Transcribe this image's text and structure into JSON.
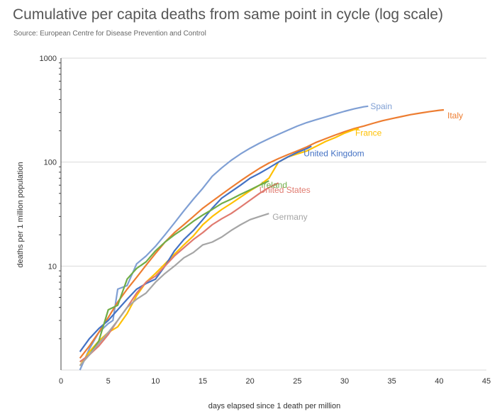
{
  "chart_data": {
    "type": "line",
    "title": "Cumulative per capita deaths from same point in cycle (log scale)",
    "subtitle": "Source: European Centre for Disease Prevention and Control",
    "xlabel": "days elapsed since 1 death per million",
    "ylabel": "deaths per 1 million population",
    "xlim": [
      0,
      45
    ],
    "ylim": [
      1,
      1000
    ],
    "yscale": "log",
    "x_ticks": [
      0,
      5,
      10,
      15,
      20,
      25,
      30,
      35,
      40,
      45
    ],
    "y_ticks": [
      1,
      10,
      100,
      1000
    ],
    "y_tick_labels": [
      "",
      "10",
      "100",
      "1000"
    ],
    "grid": true,
    "legend": "direct labels at line ends",
    "series": [
      {
        "name": "Spain",
        "color": "#7f9fd4",
        "points": [
          [
            2,
            1.0
          ],
          [
            3,
            1.6
          ],
          [
            4,
            2.3
          ],
          [
            5,
            2.8
          ],
          [
            5.5,
            3.0
          ],
          [
            6,
            6.0
          ],
          [
            7,
            6.5
          ],
          [
            8,
            10.5
          ],
          [
            9,
            12.5
          ],
          [
            10,
            15.5
          ],
          [
            11,
            20
          ],
          [
            12,
            26
          ],
          [
            13,
            34
          ],
          [
            14,
            44
          ],
          [
            15,
            56
          ],
          [
            16,
            73
          ],
          [
            17,
            88
          ],
          [
            18,
            104
          ],
          [
            19,
            120
          ],
          [
            20,
            136
          ],
          [
            21,
            152
          ],
          [
            22,
            168
          ],
          [
            23,
            185
          ],
          [
            24,
            203
          ],
          [
            25,
            222
          ],
          [
            26,
            240
          ],
          [
            27,
            256
          ],
          [
            28,
            272
          ],
          [
            29,
            290
          ],
          [
            30,
            308
          ],
          [
            31,
            325
          ],
          [
            32,
            340
          ],
          [
            32.5,
            345
          ]
        ]
      },
      {
        "name": "Italy",
        "color": "#ed7d31",
        "points": [
          [
            2,
            1.3
          ],
          [
            3,
            1.7
          ],
          [
            4,
            2.3
          ],
          [
            5,
            3.2
          ],
          [
            6,
            4.5
          ],
          [
            7,
            6.0
          ],
          [
            8,
            7.8
          ],
          [
            9,
            10.2
          ],
          [
            10,
            13.2
          ],
          [
            11,
            17
          ],
          [
            12,
            21
          ],
          [
            13,
            25
          ],
          [
            14,
            30
          ],
          [
            15,
            36
          ],
          [
            16,
            42
          ],
          [
            17,
            49
          ],
          [
            18,
            57
          ],
          [
            19,
            66
          ],
          [
            20,
            76
          ],
          [
            21,
            87
          ],
          [
            22,
            98
          ],
          [
            23,
            108
          ],
          [
            24,
            118
          ],
          [
            25,
            128
          ],
          [
            26,
            140
          ],
          [
            27,
            155
          ],
          [
            28,
            168
          ],
          [
            29,
            182
          ],
          [
            30,
            196
          ],
          [
            31,
            210
          ],
          [
            32,
            222
          ],
          [
            33,
            236
          ],
          [
            34,
            250
          ],
          [
            35,
            262
          ],
          [
            36,
            274
          ],
          [
            37,
            286
          ],
          [
            38,
            296
          ],
          [
            39,
            306
          ],
          [
            40,
            315
          ],
          [
            40.5,
            318
          ]
        ]
      },
      {
        "name": "France",
        "color": "#ffc000",
        "points": [
          [
            2,
            1.1
          ],
          [
            3,
            1.5
          ],
          [
            4,
            1.9
          ],
          [
            5,
            2.3
          ],
          [
            6,
            2.6
          ],
          [
            7,
            3.5
          ],
          [
            8,
            5.2
          ],
          [
            9,
            7.0
          ],
          [
            10,
            8.5
          ],
          [
            11,
            10.5
          ],
          [
            12,
            13
          ],
          [
            13,
            16
          ],
          [
            14,
            19.5
          ],
          [
            15,
            25
          ],
          [
            16,
            30
          ],
          [
            17,
            35
          ],
          [
            18,
            40
          ],
          [
            19,
            46
          ],
          [
            20,
            53
          ],
          [
            21,
            60
          ],
          [
            22,
            70
          ],
          [
            23,
            100
          ],
          [
            24,
            112
          ],
          [
            25,
            120
          ],
          [
            26,
            128
          ],
          [
            27,
            142
          ],
          [
            28,
            158
          ],
          [
            29,
            172
          ],
          [
            30,
            190
          ],
          [
            31,
            205
          ],
          [
            31.5,
            210
          ]
        ]
      },
      {
        "name": "United Kingdom",
        "color": "#4472c4",
        "points": [
          [
            2,
            1.5
          ],
          [
            3,
            2.0
          ],
          [
            4,
            2.5
          ],
          [
            5,
            3.0
          ],
          [
            6,
            3.8
          ],
          [
            7,
            4.8
          ],
          [
            8,
            6.0
          ],
          [
            9,
            6.8
          ],
          [
            10,
            7.5
          ],
          [
            11,
            10
          ],
          [
            12,
            14
          ],
          [
            13,
            18
          ],
          [
            14,
            22
          ],
          [
            15,
            28
          ],
          [
            16,
            36
          ],
          [
            17,
            45
          ],
          [
            18,
            52
          ],
          [
            19,
            60
          ],
          [
            20,
            70
          ],
          [
            21,
            78
          ],
          [
            22,
            88
          ],
          [
            23,
            100
          ],
          [
            24,
            112
          ],
          [
            25,
            124
          ],
          [
            26,
            135
          ],
          [
            26.5,
            142
          ]
        ]
      },
      {
        "name": "Ireland",
        "color": "#70ad47",
        "points": [
          [
            2,
            1.2
          ],
          [
            3,
            1.4
          ],
          [
            4,
            1.9
          ],
          [
            5,
            3.8
          ],
          [
            6,
            4.2
          ],
          [
            7,
            7.5
          ],
          [
            8,
            9.5
          ],
          [
            9,
            11
          ],
          [
            10,
            14
          ],
          [
            11,
            17
          ],
          [
            12,
            20
          ],
          [
            13,
            23
          ],
          [
            14,
            27
          ],
          [
            15,
            31
          ],
          [
            16,
            35
          ],
          [
            17,
            40
          ],
          [
            18,
            44
          ],
          [
            19,
            49
          ],
          [
            20,
            54
          ],
          [
            21,
            60
          ],
          [
            22,
            66
          ]
        ]
      },
      {
        "name": "United States",
        "color": "#e07a6f",
        "points": [
          [
            2,
            1.2
          ],
          [
            3,
            1.4
          ],
          [
            4,
            1.7
          ],
          [
            5,
            2.2
          ],
          [
            6,
            3.0
          ],
          [
            7,
            4.0
          ],
          [
            8,
            5.5
          ],
          [
            9,
            7.0
          ],
          [
            10,
            8.0
          ],
          [
            11,
            10
          ],
          [
            12,
            12.5
          ],
          [
            13,
            15
          ],
          [
            14,
            18
          ],
          [
            15,
            21
          ],
          [
            16,
            25
          ],
          [
            17,
            28.5
          ],
          [
            18,
            32
          ],
          [
            19,
            37
          ],
          [
            20,
            43
          ],
          [
            21,
            50
          ],
          [
            22,
            57
          ],
          [
            23,
            63
          ]
        ]
      },
      {
        "name": "Germany",
        "color": "#a5a5a5",
        "points": [
          [
            2,
            1.1
          ],
          [
            3,
            1.4
          ],
          [
            4,
            1.8
          ],
          [
            5,
            2.3
          ],
          [
            6,
            3.0
          ],
          [
            7,
            4.0
          ],
          [
            8,
            4.8
          ],
          [
            9,
            5.5
          ],
          [
            10,
            7.0
          ],
          [
            11,
            8.5
          ],
          [
            12,
            10
          ],
          [
            13,
            12
          ],
          [
            14,
            13.5
          ],
          [
            15,
            16
          ],
          [
            16,
            17
          ],
          [
            17,
            19
          ],
          [
            18,
            22
          ],
          [
            19,
            25
          ],
          [
            20,
            28
          ],
          [
            21,
            30
          ],
          [
            22,
            32
          ]
        ]
      }
    ]
  }
}
